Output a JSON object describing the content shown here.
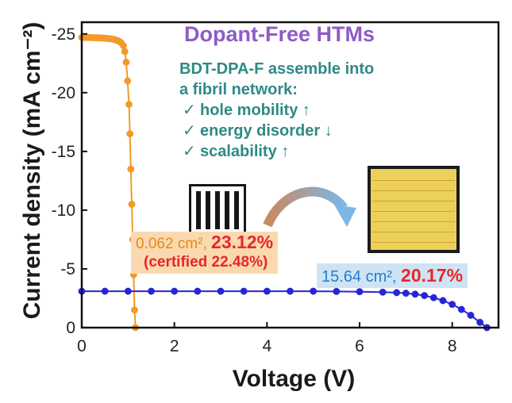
{
  "title": "Dopant-Free HTMs",
  "annotation": {
    "line1_bold": "BDT-DPA-F",
    "line1_rest": " assemble  into",
    "line2": "a fibril network:",
    "items": [
      {
        "check": "✓",
        "text": "hole mobility",
        "arrow": "↑"
      },
      {
        "check": "✓",
        "text": "energy disorder",
        "arrow": "↓"
      },
      {
        "check": "✓",
        "text": "scalability",
        "arrow": "↑"
      }
    ]
  },
  "labels": {
    "small_area": "0.062 cm²,",
    "small_pce": "23.12%",
    "small_certified": "(certified 22.48%)",
    "large_area": "15.64 cm²,",
    "large_pce": "20.17%"
  },
  "colors": {
    "small_series": "#f39a2a",
    "large_series": "#2626d8",
    "title": "#8e5bc7",
    "annotation": "#2f8a83",
    "efficiency": "#e8262c"
  },
  "chart_data": {
    "type": "line",
    "xlabel": "Voltage (V)",
    "ylabel": "Current density (mA cm⁻²)",
    "xlim": [
      0,
      9
    ],
    "ylim": [
      0,
      -26
    ],
    "xticks": [
      "0",
      "2",
      "4",
      "6",
      "8"
    ],
    "yticks": [
      "-25",
      "-20",
      "-15",
      "-10",
      "-5",
      "0"
    ],
    "grid": false,
    "series": [
      {
        "name": "0.062 cm²",
        "color": "#f39a2a",
        "x": [
          0.0,
          0.05,
          0.1,
          0.15,
          0.2,
          0.25,
          0.3,
          0.35,
          0.4,
          0.45,
          0.5,
          0.55,
          0.6,
          0.65,
          0.7,
          0.75,
          0.8,
          0.85,
          0.9,
          0.93,
          0.96,
          0.99,
          1.02,
          1.04,
          1.06,
          1.08,
          1.1,
          1.12,
          1.14,
          1.16
        ],
        "y": [
          -24.7,
          -24.7,
          -24.7,
          -24.7,
          -24.7,
          -24.68,
          -24.68,
          -24.67,
          -24.66,
          -24.65,
          -24.64,
          -24.62,
          -24.6,
          -24.57,
          -24.53,
          -24.47,
          -24.4,
          -24.25,
          -24.0,
          -23.5,
          -22.6,
          -21.0,
          -19.0,
          -16.5,
          -13.5,
          -10.5,
          -7.5,
          -4.5,
          -1.5,
          0.0
        ]
      },
      {
        "name": "15.64 cm²",
        "color": "#2626d8",
        "x": [
          0.0,
          0.5,
          1.0,
          1.5,
          2.0,
          2.5,
          3.0,
          3.5,
          4.0,
          4.5,
          5.0,
          5.5,
          6.0,
          6.5,
          6.8,
          7.0,
          7.2,
          7.4,
          7.6,
          7.8,
          8.0,
          8.2,
          8.4,
          8.6,
          8.75
        ],
        "y": [
          -3.1,
          -3.1,
          -3.1,
          -3.1,
          -3.1,
          -3.1,
          -3.1,
          -3.1,
          -3.1,
          -3.1,
          -3.1,
          -3.08,
          -3.06,
          -3.02,
          -2.98,
          -2.93,
          -2.85,
          -2.73,
          -2.55,
          -2.3,
          -1.98,
          -1.55,
          -1.05,
          -0.45,
          0.0
        ]
      }
    ]
  }
}
